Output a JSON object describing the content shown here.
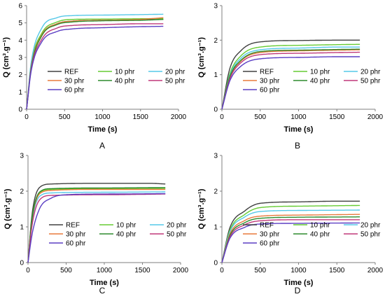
{
  "chart_data": [
    {
      "type": "line",
      "panel_label": "A",
      "xlabel": "Time (s)",
      "ylabel": "Q (cm³.g⁻¹)",
      "xlim": [
        0,
        2000
      ],
      "ylim": [
        0,
        6
      ],
      "xticks": [
        0,
        500,
        1000,
        1500,
        2000
      ],
      "yticks": [
        0,
        1,
        2,
        3,
        4,
        5,
        6
      ],
      "legend_position": "lower-center",
      "series": [
        {
          "name": "REF",
          "color": "#404040",
          "tau": 155,
          "points": [
            [
              0,
              0
            ],
            [
              60,
              2.5
            ],
            [
              200,
              4.3
            ],
            [
              400,
              4.95
            ],
            [
              600,
              5.1
            ],
            [
              1000,
              5.15
            ],
            [
              1500,
              5.18
            ],
            [
              1800,
              5.2
            ]
          ]
        },
        {
          "name": "10 phr",
          "color": "#66cc33",
          "tau": 150,
          "points": [
            [
              0,
              0
            ],
            [
              60,
              2.55
            ],
            [
              200,
              4.4
            ],
            [
              400,
              5.05
            ],
            [
              600,
              5.2
            ],
            [
              1000,
              5.22
            ],
            [
              1500,
              5.24
            ],
            [
              1800,
              5.25
            ]
          ]
        },
        {
          "name": "20 phr",
          "color": "#55c8e8",
          "tau": 140,
          "points": [
            [
              0,
              0
            ],
            [
              60,
              2.7
            ],
            [
              200,
              4.7
            ],
            [
              400,
              5.3
            ],
            [
              600,
              5.42
            ],
            [
              1000,
              5.45
            ],
            [
              1500,
              5.48
            ],
            [
              1800,
              5.5
            ]
          ]
        },
        {
          "name": "30 phr",
          "color": "#e87a3c",
          "tau": 155,
          "points": [
            [
              0,
              0
            ],
            [
              60,
              2.45
            ],
            [
              200,
              4.3
            ],
            [
              400,
              4.95
            ],
            [
              600,
              5.1
            ],
            [
              1000,
              5.15
            ],
            [
              1500,
              5.2
            ],
            [
              1800,
              5.3
            ]
          ]
        },
        {
          "name": "40 phr",
          "color": "#2e8b2e",
          "tau": 160,
          "points": [
            [
              0,
              0
            ],
            [
              60,
              2.4
            ],
            [
              200,
              4.25
            ],
            [
              400,
              4.9
            ],
            [
              600,
              5.05
            ],
            [
              1000,
              5.12
            ],
            [
              1500,
              5.15
            ],
            [
              1800,
              5.2
            ]
          ]
        },
        {
          "name": "50 phr",
          "color": "#c0397a",
          "tau": 165,
          "points": [
            [
              0,
              0
            ],
            [
              60,
              2.3
            ],
            [
              200,
              4.05
            ],
            [
              400,
              4.7
            ],
            [
              600,
              4.85
            ],
            [
              1000,
              4.9
            ],
            [
              1500,
              4.95
            ],
            [
              1800,
              4.95
            ]
          ]
        },
        {
          "name": "60 phr",
          "color": "#5b3fc4",
          "tau": 175,
          "points": [
            [
              0,
              0
            ],
            [
              60,
              2.2
            ],
            [
              200,
              3.9
            ],
            [
              400,
              4.5
            ],
            [
              600,
              4.65
            ],
            [
              1000,
              4.72
            ],
            [
              1500,
              4.78
            ],
            [
              1800,
              4.8
            ]
          ]
        }
      ]
    },
    {
      "type": "line",
      "panel_label": "B",
      "xlabel": "Time (s)",
      "ylabel": "Q (cm³.g⁻¹)",
      "xlim": [
        0,
        2000
      ],
      "ylim": [
        0,
        3
      ],
      "xticks": [
        0,
        500,
        1000,
        1500,
        2000
      ],
      "yticks": [
        0,
        1,
        2,
        3
      ],
      "legend_position": "lower-center",
      "series": [
        {
          "name": "REF",
          "color": "#404040",
          "tau": 125,
          "points": [
            [
              0,
              0
            ],
            [
              100,
              1.15
            ],
            [
              250,
              1.7
            ],
            [
              500,
              1.95
            ],
            [
              1000,
              1.99
            ],
            [
              1500,
              2.0
            ],
            [
              1800,
              2.0
            ]
          ]
        },
        {
          "name": "10 phr",
          "color": "#66cc33",
          "tau": 140,
          "points": [
            [
              0,
              0
            ],
            [
              100,
              1.0
            ],
            [
              250,
              1.55
            ],
            [
              500,
              1.8
            ],
            [
              1000,
              1.85
            ],
            [
              1500,
              1.87
            ],
            [
              1800,
              1.88
            ]
          ]
        },
        {
          "name": "20 phr",
          "color": "#55c8e8",
          "tau": 145,
          "points": [
            [
              0,
              0
            ],
            [
              100,
              0.95
            ],
            [
              250,
              1.48
            ],
            [
              500,
              1.72
            ],
            [
              1000,
              1.77
            ],
            [
              1500,
              1.8
            ],
            [
              1800,
              1.8
            ]
          ]
        },
        {
          "name": "30 phr",
          "color": "#e87a3c",
          "tau": 150,
          "points": [
            [
              0,
              0
            ],
            [
              100,
              0.9
            ],
            [
              250,
              1.4
            ],
            [
              500,
              1.64
            ],
            [
              1000,
              1.69
            ],
            [
              1500,
              1.71
            ],
            [
              1800,
              1.72
            ]
          ]
        },
        {
          "name": "40 phr",
          "color": "#2e8b2e",
          "tau": 145,
          "points": [
            [
              0,
              0
            ],
            [
              100,
              0.92
            ],
            [
              250,
              1.42
            ],
            [
              500,
              1.67
            ],
            [
              1000,
              1.71
            ],
            [
              1500,
              1.73
            ],
            [
              1800,
              1.74
            ]
          ]
        },
        {
          "name": "50 phr",
          "color": "#c0397a",
          "tau": 150,
          "points": [
            [
              0,
              0
            ],
            [
              100,
              0.86
            ],
            [
              250,
              1.35
            ],
            [
              500,
              1.58
            ],
            [
              1000,
              1.62
            ],
            [
              1500,
              1.64
            ],
            [
              1800,
              1.65
            ]
          ]
        },
        {
          "name": "60 phr",
          "color": "#5b3fc4",
          "tau": 155,
          "points": [
            [
              0,
              0
            ],
            [
              100,
              0.8
            ],
            [
              250,
              1.25
            ],
            [
              500,
              1.46
            ],
            [
              1000,
              1.5
            ],
            [
              1500,
              1.52
            ],
            [
              1800,
              1.52
            ]
          ]
        }
      ]
    },
    {
      "type": "line",
      "panel_label": "C",
      "xlabel": "Time (s)",
      "ylabel": "Q (cm³.g⁻¹)",
      "xlim": [
        0,
        2000
      ],
      "ylim": [
        0,
        3
      ],
      "xticks": [
        0,
        500,
        1000,
        1500,
        2000
      ],
      "yticks": [
        0,
        1,
        2,
        3
      ],
      "legend_position": "lower-center",
      "series": [
        {
          "name": "REF",
          "color": "#404040",
          "tau": 55,
          "points": [
            [
              0,
              0
            ],
            [
              50,
              1.3
            ],
            [
              150,
              2.1
            ],
            [
              300,
              2.2
            ],
            [
              1000,
              2.22
            ],
            [
              1600,
              2.22
            ],
            [
              1800,
              2.2
            ]
          ]
        },
        {
          "name": "10 phr",
          "color": "#66cc33",
          "tau": 60,
          "points": [
            [
              0,
              0
            ],
            [
              50,
              1.2
            ],
            [
              150,
              1.95
            ],
            [
              300,
              2.05
            ],
            [
              1000,
              2.07
            ],
            [
              1800,
              2.08
            ]
          ]
        },
        {
          "name": "20 phr",
          "color": "#55c8e8",
          "tau": 65,
          "points": [
            [
              0,
              0
            ],
            [
              50,
              1.1
            ],
            [
              150,
              1.85
            ],
            [
              300,
              1.95
            ],
            [
              1000,
              1.97
            ],
            [
              1800,
              1.98
            ]
          ]
        },
        {
          "name": "30 phr",
          "color": "#e87a3c",
          "tau": 60,
          "points": [
            [
              0,
              0
            ],
            [
              50,
              1.15
            ],
            [
              150,
              1.92
            ],
            [
              300,
              2.02
            ],
            [
              1000,
              2.05
            ],
            [
              1800,
              2.05
            ]
          ]
        },
        {
          "name": "40 phr",
          "color": "#2e8b2e",
          "tau": 58,
          "points": [
            [
              0,
              0
            ],
            [
              50,
              1.18
            ],
            [
              150,
              1.97
            ],
            [
              300,
              2.07
            ],
            [
              1000,
              2.09
            ],
            [
              1800,
              2.1
            ]
          ]
        },
        {
          "name": "50 phr",
          "color": "#c0397a",
          "tau": 70,
          "points": [
            [
              0,
              0
            ],
            [
              50,
              1.0
            ],
            [
              150,
              1.75
            ],
            [
              300,
              1.88
            ],
            [
              1000,
              1.9
            ],
            [
              1800,
              1.92
            ]
          ]
        },
        {
          "name": "60 phr",
          "color": "#5b3fc4",
          "tau": 100,
          "points": [
            [
              0,
              0
            ],
            [
              50,
              0.75
            ],
            [
              150,
              1.5
            ],
            [
              300,
              1.8
            ],
            [
              500,
              1.9
            ],
            [
              1000,
              1.92
            ],
            [
              1800,
              1.93
            ]
          ]
        }
      ]
    },
    {
      "type": "line",
      "panel_label": "D",
      "xlabel": "Time (s)",
      "ylabel": "Q (cm³.g⁻¹)",
      "xlim": [
        0,
        2000
      ],
      "ylim": [
        0,
        3
      ],
      "xticks": [
        0,
        500,
        1000,
        1500,
        2000
      ],
      "yticks": [
        0,
        1,
        2,
        3
      ],
      "legend_position": "lower-center",
      "series": [
        {
          "name": "REF",
          "color": "#404040",
          "tau": 130,
          "points": [
            [
              0,
              0
            ],
            [
              100,
              0.95
            ],
            [
              300,
              1.45
            ],
            [
              500,
              1.66
            ],
            [
              1000,
              1.7
            ],
            [
              1500,
              1.72
            ],
            [
              1800,
              1.72
            ]
          ]
        },
        {
          "name": "10 phr",
          "color": "#66cc33",
          "tau": 130,
          "points": [
            [
              0,
              0
            ],
            [
              100,
              0.88
            ],
            [
              300,
              1.35
            ],
            [
              500,
              1.54
            ],
            [
              1000,
              1.58
            ],
            [
              1800,
              1.6
            ]
          ]
        },
        {
          "name": "20 phr",
          "color": "#55c8e8",
          "tau": 125,
          "points": [
            [
              0,
              0
            ],
            [
              100,
              0.84
            ],
            [
              300,
              1.28
            ],
            [
              500,
              1.43
            ],
            [
              1000,
              1.46
            ],
            [
              1800,
              1.47
            ]
          ]
        },
        {
          "name": "30 phr",
          "color": "#e87a3c",
          "tau": 120,
          "points": [
            [
              0,
              0
            ],
            [
              100,
              0.78
            ],
            [
              300,
              1.18
            ],
            [
              500,
              1.3
            ],
            [
              1000,
              1.33
            ],
            [
              1800,
              1.35
            ]
          ]
        },
        {
          "name": "40 phr",
          "color": "#2e8b2e",
          "tau": 125,
          "points": [
            [
              0,
              0
            ],
            [
              100,
              0.74
            ],
            [
              300,
              1.12
            ],
            [
              500,
              1.24
            ],
            [
              1000,
              1.27
            ],
            [
              1800,
              1.28
            ]
          ]
        },
        {
          "name": "50 phr",
          "color": "#c0397a",
          "tau": 120,
          "points": [
            [
              0,
              0
            ],
            [
              100,
              0.7
            ],
            [
              300,
              1.06
            ],
            [
              500,
              1.17
            ],
            [
              1000,
              1.2
            ],
            [
              1800,
              1.2
            ]
          ]
        },
        {
          "name": "60 phr",
          "color": "#5b3fc4",
          "tau": 115,
          "points": [
            [
              0,
              0
            ],
            [
              100,
              0.66
            ],
            [
              300,
              0.99
            ],
            [
              500,
              1.08
            ],
            [
              1000,
              1.1
            ],
            [
              1800,
              1.11
            ]
          ]
        }
      ]
    }
  ]
}
